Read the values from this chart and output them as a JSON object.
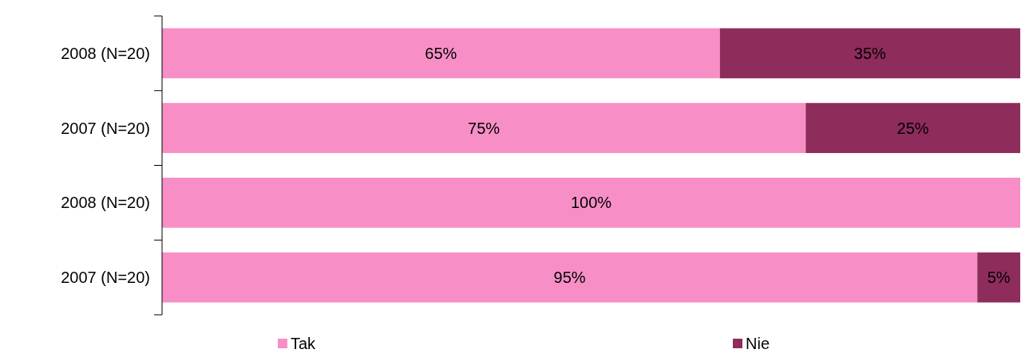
{
  "chart_data": {
    "type": "bar",
    "orientation": "horizontal",
    "stacked": true,
    "categories": [
      "2008 (N=20)",
      "2007 (N=20)",
      "2008 (N=20)",
      "2007 (N=20)"
    ],
    "series": [
      {
        "name": "Tak",
        "color": "#f78fc6",
        "values": [
          65,
          75,
          100,
          95
        ],
        "value_labels": [
          "65%",
          "75%",
          "100%",
          "95%"
        ]
      },
      {
        "name": "Nie",
        "color": "#8e2c5c",
        "values": [
          35,
          25,
          null,
          5
        ],
        "value_labels": [
          "35%",
          "25%",
          null,
          "5%"
        ]
      }
    ],
    "xlim": [
      0,
      100
    ],
    "tick_labels": "y",
    "legend": "bottom",
    "grid": false
  }
}
